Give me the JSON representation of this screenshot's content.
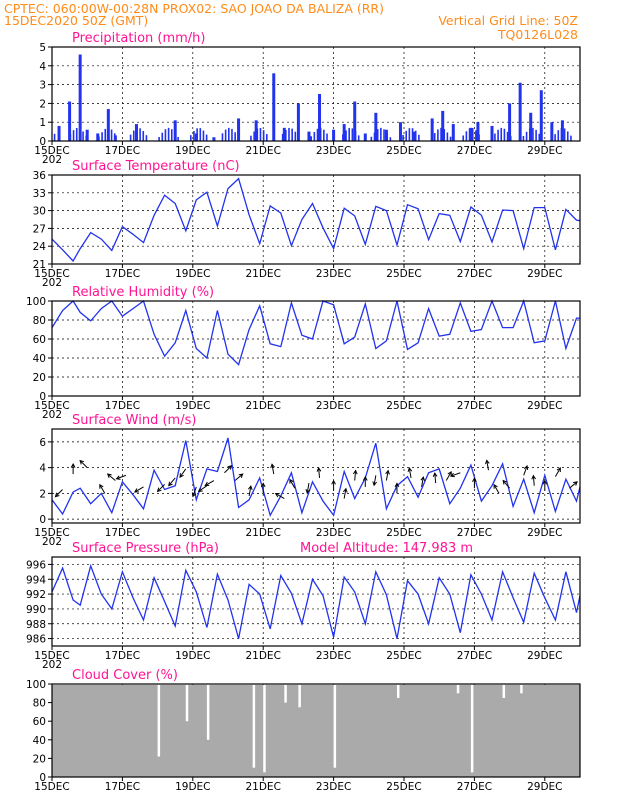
{
  "header": {
    "line1_left": "CPTEC:   060:00W-00:28N   PROX02: SAO JOAO DA BALIZA (RR)",
    "line2_left": "15DEC2020 50Z (GMT)",
    "line2_right": "Vertical Grid Line: 50Z",
    "line3_right": "TQ0126L028"
  },
  "x_axis": {
    "days": [
      "15DEC",
      "17DEC",
      "19DEC",
      "21DEC",
      "23DEC",
      "25DEC",
      "27DEC",
      "29DEC"
    ],
    "overflow_label": "202",
    "x_start_day": 15,
    "x_end_day": 30
  },
  "colors": {
    "header": "#ff8c1a",
    "title": "#ff1493",
    "line": "#2233ee",
    "bar": "#2233ee",
    "cloud": "#aaaaaa"
  },
  "chart_data": [
    {
      "type": "bar",
      "title": "Precipitation (mm/h)",
      "ylim": [
        0,
        5
      ],
      "yticks": [
        "0",
        "1",
        "2",
        "3",
        "4",
        "5"
      ],
      "x": [
        15.2,
        15.5,
        15.8,
        16.0,
        16.3,
        16.6,
        16.8,
        17.4,
        18.5,
        19.1,
        19.6,
        20.3,
        20.8,
        21.3,
        21.6,
        22.0,
        22.3,
        22.6,
        23.0,
        23.3,
        23.6,
        23.9,
        24.2,
        24.5,
        24.9,
        25.3,
        25.8,
        26.1,
        26.4,
        26.9,
        27.1,
        27.5,
        28.0,
        28.3,
        28.6,
        28.9,
        29.2,
        29.5
      ],
      "values": [
        0.8,
        2.1,
        4.6,
        0.6,
        0.4,
        1.7,
        0.3,
        0.9,
        1.1,
        0.4,
        0.2,
        1.2,
        1.1,
        3.6,
        0.7,
        2.0,
        0.5,
        2.5,
        0.6,
        0.9,
        2.1,
        0.4,
        1.5,
        0.6,
        1.0,
        0.5,
        1.2,
        1.6,
        0.9,
        0.7,
        1.0,
        0.8,
        2.0,
        3.1,
        1.5,
        2.7,
        1.0,
        1.1
      ],
      "series": [
        {
          "name": "",
          "color": "#2233ee"
        }
      ]
    },
    {
      "type": "line",
      "title": "Surface Temperature (nC)",
      "ylim": [
        21,
        36
      ],
      "yticks": [
        "21",
        "24",
        "27",
        "30",
        "33",
        "36"
      ],
      "x": [
        15.0,
        15.3,
        15.6,
        15.8,
        16.1,
        16.4,
        16.7,
        17.0,
        17.3,
        17.6,
        17.9,
        18.2,
        18.5,
        18.8,
        19.1,
        19.4,
        19.7,
        20.0,
        20.3,
        20.6,
        20.9,
        21.2,
        21.5,
        21.8,
        22.1,
        22.4,
        22.7,
        23.0,
        23.3,
        23.6,
        23.9,
        24.2,
        24.5,
        24.8,
        25.1,
        25.4,
        25.7,
        26.0,
        26.3,
        26.6,
        26.9,
        27.2,
        27.5,
        27.8,
        28.1,
        28.4,
        28.7,
        29.0,
        29.3,
        29.6,
        29.9,
        30.0
      ],
      "values": [
        25.2,
        23.4,
        21.5,
        23.6,
        26.3,
        25.2,
        23.3,
        27.3,
        26.0,
        24.6,
        29.2,
        32.6,
        31.2,
        26.6,
        31.8,
        33.1,
        27.4,
        33.7,
        35.4,
        29.3,
        24.4,
        30.8,
        29.6,
        24.1,
        28.5,
        31.2,
        27.1,
        23.6,
        30.4,
        29.1,
        24.3,
        30.7,
        30.0,
        24.2,
        31.0,
        30.3,
        25.1,
        29.5,
        29.2,
        24.8,
        30.6,
        29.2,
        24.7,
        30.1,
        30.0,
        23.6,
        30.5,
        30.5,
        23.4,
        30.2,
        28.4,
        28.3
      ],
      "series": [
        {
          "name": "",
          "color": "#2233ee"
        }
      ]
    },
    {
      "type": "line",
      "title": "Relative Humidity (%)",
      "ylim": [
        0,
        100
      ],
      "yticks": [
        "0",
        "20",
        "40",
        "60",
        "80",
        "100"
      ],
      "x": [
        15.0,
        15.3,
        15.6,
        15.8,
        16.1,
        16.4,
        16.7,
        17.0,
        17.3,
        17.6,
        17.9,
        18.2,
        18.5,
        18.8,
        19.1,
        19.4,
        19.7,
        20.0,
        20.3,
        20.6,
        20.9,
        21.2,
        21.5,
        21.8,
        22.1,
        22.4,
        22.7,
        23.0,
        23.3,
        23.6,
        23.9,
        24.2,
        24.5,
        24.8,
        25.1,
        25.4,
        25.7,
        26.0,
        26.3,
        26.6,
        26.9,
        27.2,
        27.5,
        27.8,
        28.1,
        28.4,
        28.7,
        29.0,
        29.3,
        29.6,
        29.9,
        30.0
      ],
      "values": [
        72,
        90,
        100,
        88,
        79,
        92,
        100,
        84,
        92,
        100,
        65,
        42,
        56,
        90,
        50,
        40,
        90,
        44,
        33,
        70,
        95,
        55,
        52,
        98,
        64,
        60,
        100,
        96,
        55,
        62,
        97,
        50,
        58,
        100,
        49,
        56,
        92,
        63,
        65,
        98,
        68,
        70,
        100,
        72,
        72,
        100,
        56,
        58,
        100,
        50,
        82,
        82
      ],
      "series": [
        {
          "name": "",
          "color": "#2233ee"
        }
      ]
    },
    {
      "type": "line",
      "title": "Surface Wind (m/s)",
      "ylim": [
        -0.3,
        7
      ],
      "yticks": [
        "0",
        "2",
        "4",
        "6"
      ],
      "x": [
        15.0,
        15.3,
        15.6,
        15.8,
        16.1,
        16.4,
        16.7,
        17.0,
        17.3,
        17.6,
        17.9,
        18.2,
        18.5,
        18.8,
        19.1,
        19.4,
        19.7,
        20.0,
        20.3,
        20.6,
        20.9,
        21.2,
        21.5,
        21.8,
        22.1,
        22.4,
        22.7,
        23.0,
        23.3,
        23.6,
        23.9,
        24.2,
        24.5,
        24.8,
        25.1,
        25.4,
        25.7,
        26.0,
        26.3,
        26.6,
        26.9,
        27.2,
        27.5,
        27.8,
        28.1,
        28.4,
        28.7,
        29.0,
        29.3,
        29.6,
        29.9,
        30.0
      ],
      "values": [
        1.5,
        0.4,
        2.1,
        2.4,
        1.2,
        2.0,
        0.5,
        2.9,
        1.9,
        0.8,
        3.8,
        2.3,
        2.6,
        6.1,
        1.5,
        3.9,
        3.7,
        6.3,
        0.9,
        1.5,
        3.2,
        0.3,
        1.8,
        3.6,
        0.5,
        2.9,
        1.4,
        0.3,
        3.7,
        1.6,
        3.2,
        5.9,
        0.8,
        2.6,
        3.3,
        1.7,
        3.6,
        3.9,
        1.2,
        2.4,
        4.2,
        1.4,
        2.6,
        4.3,
        1.0,
        3.1,
        0.5,
        3.4,
        0.6,
        3.1,
        1.4,
        2.5
      ],
      "series": [
        {
          "name": "",
          "color": "#2233ee"
        }
      ],
      "arrows_x": [
        15.3,
        15.6,
        16.0,
        16.5,
        16.8,
        17.1,
        17.6,
        18.2,
        18.5,
        18.8,
        19.1,
        19.4,
        19.6,
        19.9,
        20.2,
        20.6,
        21.0,
        21.3,
        21.6,
        21.9,
        22.3,
        22.6,
        23.0,
        23.3,
        23.6,
        23.9,
        24.2,
        24.5,
        24.8,
        25.2,
        25.5,
        25.9,
        26.2,
        26.6,
        27.0,
        27.4,
        27.7,
        28.0,
        28.4,
        28.7,
        29.0,
        29.3,
        29.7
      ],
      "arrows_speed": [
        2.3,
        3.5,
        4.0,
        2.0,
        3.0,
        3.4,
        2.5,
        2.7,
        3.2,
        3.9,
        2.5,
        2.6,
        3.0,
        3.6,
        3.0,
        1.8,
        2.0,
        3.5,
        1.6,
        2.4,
        2.8,
        3.2,
        2.2,
        1.6,
        3.0,
        2.5,
        3.4,
        3.0,
        2.0,
        3.2,
        2.5,
        2.8,
        3.0,
        3.6,
        2.4,
        3.8,
        2.0,
        2.4,
        3.4,
        2.6,
        2.2,
        3.3,
        2.4
      ],
      "arrows_dir_deg": [
        225,
        90,
        135,
        120,
        140,
        200,
        210,
        225,
        230,
        235,
        250,
        215,
        210,
        45,
        40,
        80,
        90,
        100,
        150,
        120,
        260,
        95,
        90,
        80,
        85,
        90,
        260,
        80,
        90,
        100,
        80,
        95,
        60,
        200,
        90,
        100,
        120,
        130,
        70,
        95,
        90,
        60,
        40
      ]
    },
    {
      "type": "line",
      "title": "Surface Pressure (hPa)",
      "subtitle": "Model Altitude: 147.983 m",
      "ylim": [
        985,
        997
      ],
      "yticks": [
        "986",
        "988",
        "990",
        "992",
        "994",
        "996"
      ],
      "x": [
        15.0,
        15.3,
        15.6,
        15.8,
        16.1,
        16.4,
        16.7,
        17.0,
        17.3,
        17.6,
        17.9,
        18.2,
        18.5,
        18.8,
        19.1,
        19.4,
        19.7,
        20.0,
        20.3,
        20.6,
        20.9,
        21.2,
        21.5,
        21.8,
        22.1,
        22.4,
        22.7,
        23.0,
        23.3,
        23.6,
        23.9,
        24.2,
        24.5,
        24.8,
        25.1,
        25.4,
        25.7,
        26.0,
        26.3,
        26.6,
        26.9,
        27.2,
        27.5,
        27.8,
        28.1,
        28.4,
        28.7,
        29.0,
        29.3,
        29.6,
        29.9,
        30.0
      ],
      "values": [
        992.3,
        995.5,
        991.2,
        990.5,
        995.8,
        992.0,
        990.0,
        995.0,
        991.5,
        988.5,
        994.2,
        991.0,
        987.7,
        995.2,
        992.3,
        987.5,
        994.7,
        991.2,
        986.0,
        993.3,
        992.0,
        987.3,
        994.5,
        992.1,
        988.0,
        994.0,
        991.8,
        986.2,
        994.3,
        992.3,
        988.0,
        995.0,
        991.9,
        986.0,
        993.8,
        992.0,
        988.0,
        994.2,
        992.0,
        986.8,
        994.6,
        992.0,
        988.5,
        995.0,
        991.5,
        988.2,
        994.8,
        991.5,
        988.5,
        995.0,
        989.5,
        991.8
      ],
      "series": [
        {
          "name": "",
          "color": "#2233ee"
        }
      ]
    },
    {
      "type": "bar",
      "title": "Cloud Cover (%)",
      "ylim": [
        0,
        100
      ],
      "yticks": [
        "0",
        "20",
        "40",
        "60",
        "80",
        "100"
      ],
      "base_value": 99,
      "gaps_x": [
        18.0,
        18.8,
        19.4,
        20.7,
        21.0,
        21.6,
        22.0,
        23.0,
        24.8,
        26.5,
        26.9,
        27.8,
        28.3
      ],
      "gaps_value": [
        22,
        60,
        40,
        10,
        5,
        80,
        75,
        10,
        85,
        90,
        5,
        85,
        90
      ],
      "series": [
        {
          "name": "",
          "color": "#aaaaaa"
        }
      ]
    }
  ]
}
